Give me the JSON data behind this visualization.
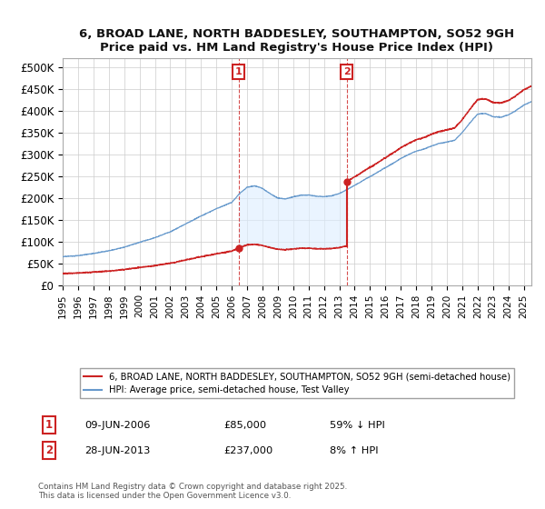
{
  "title": "6, BROAD LANE, NORTH BADDESLEY, SOUTHAMPTON, SO52 9GH",
  "subtitle": "Price paid vs. HM Land Registry's House Price Index (HPI)",
  "ylim": [
    0,
    520000
  ],
  "yticks": [
    0,
    50000,
    100000,
    150000,
    200000,
    250000,
    300000,
    350000,
    400000,
    450000,
    500000
  ],
  "ytick_labels": [
    "£0",
    "£50K",
    "£100K",
    "£150K",
    "£200K",
    "£250K",
    "£300K",
    "£350K",
    "£400K",
    "£450K",
    "£500K"
  ],
  "hpi_color": "#6699cc",
  "price_color": "#cc2222",
  "shade_color": "#ddeeff",
  "t1_x": 2006.44,
  "t1_price": 85000,
  "t2_x": 2013.49,
  "t2_price": 237000,
  "legend_price": "6, BROAD LANE, NORTH BADDESLEY, SOUTHAMPTON, SO52 9GH (semi-detached house)",
  "legend_hpi": "HPI: Average price, semi-detached house, Test Valley",
  "annotation1_date": "09-JUN-2006",
  "annotation1_price": "£85,000",
  "annotation1_hpi": "59% ↓ HPI",
  "annotation2_date": "28-JUN-2013",
  "annotation2_price": "£237,000",
  "annotation2_hpi": "8% ↑ HPI",
  "copyright_text": "Contains HM Land Registry data © Crown copyright and database right 2025.\nThis data is licensed under the Open Government Licence v3.0.",
  "background_color": "#ffffff",
  "grid_color": "#cccccc",
  "xlim_start": 1995.0,
  "xlim_end": 2025.5,
  "xtick_years": [
    1995,
    1996,
    1997,
    1998,
    1999,
    2000,
    2001,
    2002,
    2003,
    2004,
    2005,
    2006,
    2007,
    2008,
    2009,
    2010,
    2011,
    2012,
    2013,
    2014,
    2015,
    2016,
    2017,
    2018,
    2019,
    2020,
    2021,
    2022,
    2023,
    2024,
    2025
  ]
}
